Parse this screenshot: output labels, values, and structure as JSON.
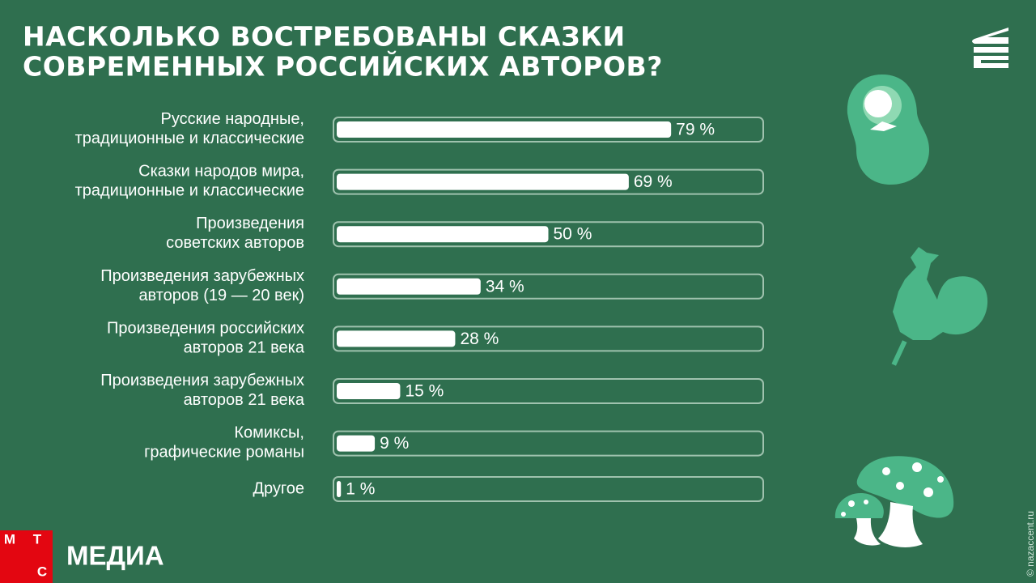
{
  "chart_data": {
    "type": "bar",
    "orientation": "horizontal",
    "title": "НАСКОЛЬКО ВОСТРЕБОВАНЫ СКАЗКИ\nСОВРЕМЕННЫХ РОССИЙСКИХ АВТОРОВ?",
    "categories": [
      "Русские народные,\nтрадиционные и классические",
      "Сказки народов мира,\nтрадиционные и классические",
      "Произведения\nсоветских авторов",
      "Произведения зарубежных\nавторов (19 — 20 век)",
      "Произведения российских\nавторов 21 века",
      "Произведения зарубежных\nавторов 21 века",
      "Комиксы,\nграфические романы",
      "Другое"
    ],
    "values": [
      79,
      69,
      50,
      34,
      28,
      15,
      9,
      1
    ],
    "value_labels": [
      "79 %",
      "69 %",
      "50 %",
      "34 %",
      "28 %",
      "15 %",
      "9 %",
      "1 %"
    ],
    "color": "#ffffff",
    "xlim": [
      0,
      100
    ]
  },
  "brand": {
    "letters": [
      "М",
      "Т",
      "С"
    ],
    "name": "МЕДИА"
  },
  "watermark": "© nazaccent.ru"
}
